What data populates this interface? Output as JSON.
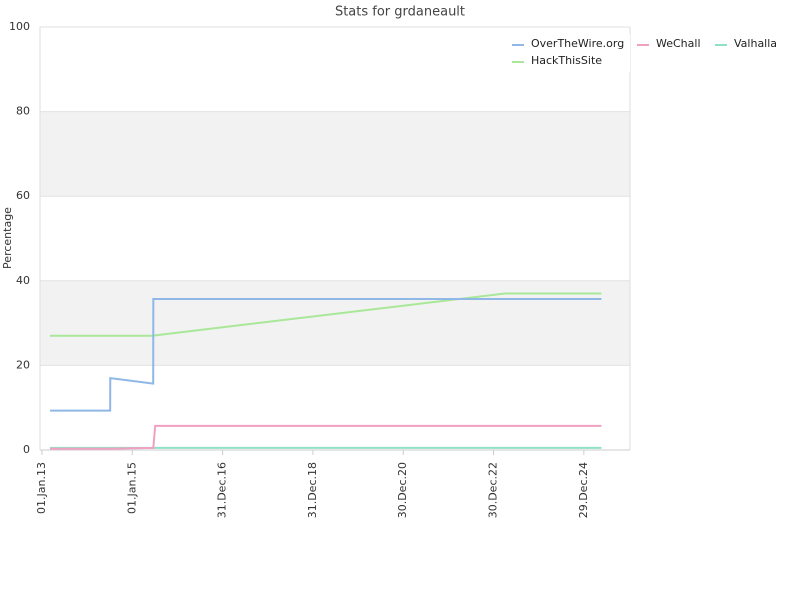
{
  "chart_data": {
    "type": "line",
    "title": "Stats for grdaneault",
    "y_label": "Percentage",
    "x": [
      "2013-03-07",
      "2014-07-06",
      "2014-07-07",
      "2015-06-19",
      "2015-06-20",
      "2015-07-05",
      "2023-04-01",
      "2025-05-20"
    ],
    "series": [
      {
        "name": "OverTheWire.org",
        "color": "#8fb8e8",
        "values": [
          9.3,
          9.3,
          17,
          15.7,
          35.7,
          35.7,
          35.7,
          35.7
        ]
      },
      {
        "name": "WeChall",
        "color": "#f0a0c0",
        "values": [
          0.3,
          0.3,
          0.3,
          0.5,
          0.5,
          5.7,
          5.7,
          5.7
        ]
      },
      {
        "name": "Valhalla",
        "color": "#90e0c8",
        "values": [
          0.5,
          0.5,
          0.5,
          0.5,
          0.5,
          0.5,
          0.5,
          0.5
        ]
      },
      {
        "name": "HackThisSite",
        "color": "#a8e898",
        "values": [
          27,
          27,
          27,
          27,
          27,
          27.1,
          37,
          37
        ]
      }
    ],
    "xlim": [
      "2012-12-16",
      "2026-01-06"
    ],
    "xticks": [
      {
        "value": "2013-01-01",
        "label": "01.Jan.13"
      },
      {
        "value": "2015-01-01",
        "label": "01.Jan.15"
      },
      {
        "value": "2016-12-31",
        "label": "31.Dec.16"
      },
      {
        "value": "2018-12-31",
        "label": "31.Dec.18"
      },
      {
        "value": "2020-12-30",
        "label": "30.Dec.20"
      },
      {
        "value": "2022-12-30",
        "label": "30.Dec.22"
      },
      {
        "value": "2024-12-29",
        "label": "29.Dec.24"
      }
    ],
    "ylim": [
      0,
      100
    ],
    "yticks": [
      0,
      20,
      40,
      60,
      80,
      100
    ],
    "grid": true,
    "alternate_bands": true,
    "band_color": "#f2f2f2",
    "legend_position": "top-right"
  }
}
